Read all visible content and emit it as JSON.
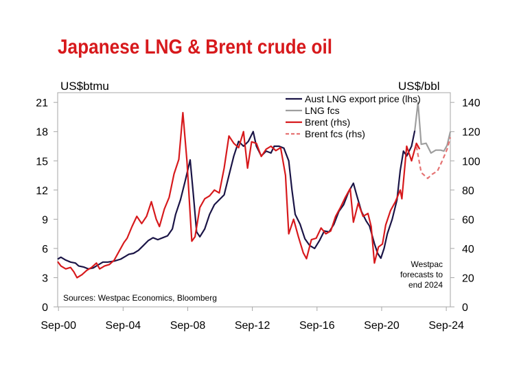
{
  "chart_data": {
    "type": "line",
    "title": "Japanese LNG & Brent crude oil",
    "y_left_label": "US$btmu",
    "y_right_label": "US$/bbl",
    "y_left_range": [
      0,
      22
    ],
    "y_right_range": [
      0,
      146.67
    ],
    "y_left_ticks": [
      "0",
      "3",
      "6",
      "9",
      "12",
      "15",
      "18",
      "21"
    ],
    "y_right_ticks": [
      "0",
      "20",
      "40",
      "60",
      "80",
      "100",
      "120",
      "140"
    ],
    "x_range": [
      2000.7,
      2025.0
    ],
    "x_ticks": [
      {
        "x": 2000.75,
        "label": "Sep-00"
      },
      {
        "x": 2004.75,
        "label": "Sep-04"
      },
      {
        "x": 2008.75,
        "label": "Sep-08"
      },
      {
        "x": 2012.75,
        "label": "Sep-12"
      },
      {
        "x": 2016.75,
        "label": "Sep-16"
      },
      {
        "x": 2020.75,
        "label": "Sep-20"
      },
      {
        "x": 2024.75,
        "label": "Sep-24"
      }
    ],
    "legend_position": "top-right",
    "source_note": "Sources: Westpac Economics,  Bloomberg",
    "forecast_note": [
      "Westpac",
      "forecasts to",
      "end 2024"
    ],
    "series": [
      {
        "name": "Aust LNG export price (lhs)",
        "axis": "left",
        "color": "#1a1446",
        "style": "solid",
        "points": [
          [
            2000.7,
            4.9
          ],
          [
            2000.9,
            5.1
          ],
          [
            2001.2,
            4.8
          ],
          [
            2001.5,
            4.6
          ],
          [
            2001.8,
            4.5
          ],
          [
            2002.0,
            4.2
          ],
          [
            2002.3,
            4.1
          ],
          [
            2002.6,
            3.9
          ],
          [
            2002.9,
            4.0
          ],
          [
            2003.2,
            4.3
          ],
          [
            2003.5,
            4.6
          ],
          [
            2003.8,
            4.6
          ],
          [
            2004.2,
            4.7
          ],
          [
            2004.6,
            4.9
          ],
          [
            2004.9,
            5.2
          ],
          [
            2005.1,
            5.4
          ],
          [
            2005.4,
            5.5
          ],
          [
            2005.7,
            5.8
          ],
          [
            2006.0,
            6.3
          ],
          [
            2006.3,
            6.8
          ],
          [
            2006.6,
            7.1
          ],
          [
            2006.9,
            6.9
          ],
          [
            2007.2,
            7.1
          ],
          [
            2007.5,
            7.3
          ],
          [
            2007.8,
            8.0
          ],
          [
            2008.0,
            9.5
          ],
          [
            2008.3,
            11.0
          ],
          [
            2008.6,
            13.0
          ],
          [
            2008.9,
            15.1
          ],
          [
            2009.1,
            11.5
          ],
          [
            2009.3,
            7.7
          ],
          [
            2009.5,
            7.2
          ],
          [
            2009.8,
            8.0
          ],
          [
            2010.1,
            9.5
          ],
          [
            2010.4,
            10.5
          ],
          [
            2010.7,
            11.0
          ],
          [
            2011.0,
            11.5
          ],
          [
            2011.3,
            13.5
          ],
          [
            2011.6,
            15.5
          ],
          [
            2011.9,
            17.0
          ],
          [
            2012.2,
            16.5
          ],
          [
            2012.5,
            17.0
          ],
          [
            2012.8,
            18.0
          ],
          [
            2013.0,
            16.5
          ],
          [
            2013.3,
            15.5
          ],
          [
            2013.6,
            16.0
          ],
          [
            2013.9,
            15.8
          ],
          [
            2014.1,
            16.5
          ],
          [
            2014.4,
            16.5
          ],
          [
            2014.7,
            16.3
          ],
          [
            2015.0,
            15.0
          ],
          [
            2015.2,
            12.0
          ],
          [
            2015.4,
            9.5
          ],
          [
            2015.7,
            8.5
          ],
          [
            2016.0,
            7.0
          ],
          [
            2016.3,
            6.3
          ],
          [
            2016.6,
            6.0
          ],
          [
            2016.9,
            6.8
          ],
          [
            2017.2,
            7.8
          ],
          [
            2017.5,
            7.7
          ],
          [
            2017.8,
            8.5
          ],
          [
            2018.1,
            9.8
          ],
          [
            2018.4,
            10.5
          ],
          [
            2018.7,
            11.8
          ],
          [
            2019.0,
            12.7
          ],
          [
            2019.2,
            11.5
          ],
          [
            2019.5,
            9.8
          ],
          [
            2019.8,
            8.8
          ],
          [
            2020.0,
            8.3
          ],
          [
            2020.3,
            6.5
          ],
          [
            2020.5,
            5.5
          ],
          [
            2020.7,
            5.0
          ],
          [
            2020.9,
            6.0
          ],
          [
            2021.1,
            7.5
          ],
          [
            2021.4,
            9.0
          ],
          [
            2021.7,
            11.0
          ],
          [
            2021.9,
            14.0
          ],
          [
            2022.1,
            16.0
          ],
          [
            2022.3,
            15.5
          ],
          [
            2022.6,
            16.5
          ],
          [
            2022.8,
            18.1
          ]
        ]
      },
      {
        "name": "LNG fcs",
        "axis": "left",
        "color": "#9e9e9e",
        "style": "solid",
        "points": [
          [
            2022.8,
            18.1
          ],
          [
            2023.0,
            21.0
          ],
          [
            2023.2,
            16.7
          ],
          [
            2023.5,
            16.8
          ],
          [
            2023.8,
            15.8
          ],
          [
            2024.1,
            16.1
          ],
          [
            2024.4,
            16.1
          ],
          [
            2024.6,
            16.0
          ],
          [
            2024.8,
            16.6
          ],
          [
            2025.0,
            18.0
          ]
        ]
      },
      {
        "name": "Brent (rhs)",
        "axis": "right",
        "color": "#d7191c",
        "style": "solid",
        "points": [
          [
            2000.7,
            31
          ],
          [
            2000.9,
            28
          ],
          [
            2001.2,
            26
          ],
          [
            2001.5,
            27
          ],
          [
            2001.7,
            24
          ],
          [
            2001.9,
            20
          ],
          [
            2002.2,
            22
          ],
          [
            2002.5,
            25
          ],
          [
            2002.8,
            27
          ],
          [
            2003.1,
            30
          ],
          [
            2003.3,
            26
          ],
          [
            2003.6,
            28
          ],
          [
            2003.9,
            29
          ],
          [
            2004.2,
            32
          ],
          [
            2004.5,
            38
          ],
          [
            2004.8,
            44
          ],
          [
            2005.0,
            47
          ],
          [
            2005.3,
            55
          ],
          [
            2005.6,
            62
          ],
          [
            2005.9,
            57
          ],
          [
            2006.2,
            62
          ],
          [
            2006.5,
            72
          ],
          [
            2006.8,
            60
          ],
          [
            2007.0,
            55
          ],
          [
            2007.3,
            67
          ],
          [
            2007.6,
            75
          ],
          [
            2007.9,
            91
          ],
          [
            2008.2,
            101
          ],
          [
            2008.45,
            133
          ],
          [
            2008.7,
            100
          ],
          [
            2009.0,
            45
          ],
          [
            2009.2,
            48
          ],
          [
            2009.5,
            68
          ],
          [
            2009.8,
            74
          ],
          [
            2010.1,
            76
          ],
          [
            2010.4,
            80
          ],
          [
            2010.7,
            78
          ],
          [
            2011.0,
            95
          ],
          [
            2011.3,
            117
          ],
          [
            2011.6,
            112
          ],
          [
            2011.9,
            109
          ],
          [
            2012.2,
            120
          ],
          [
            2012.45,
            95
          ],
          [
            2012.7,
            113
          ],
          [
            2013.0,
            112
          ],
          [
            2013.3,
            103
          ],
          [
            2013.6,
            108
          ],
          [
            2013.9,
            110
          ],
          [
            2014.2,
            107
          ],
          [
            2014.5,
            109
          ],
          [
            2014.8,
            90
          ],
          [
            2015.0,
            50
          ],
          [
            2015.3,
            60
          ],
          [
            2015.6,
            48
          ],
          [
            2015.9,
            37
          ],
          [
            2016.1,
            33
          ],
          [
            2016.4,
            46
          ],
          [
            2016.7,
            47
          ],
          [
            2017.0,
            54
          ],
          [
            2017.3,
            50
          ],
          [
            2017.6,
            52
          ],
          [
            2017.9,
            62
          ],
          [
            2018.2,
            68
          ],
          [
            2018.5,
            75
          ],
          [
            2018.8,
            81
          ],
          [
            2019.0,
            58
          ],
          [
            2019.3,
            71
          ],
          [
            2019.6,
            62
          ],
          [
            2019.9,
            64
          ],
          [
            2020.1,
            55
          ],
          [
            2020.3,
            30
          ],
          [
            2020.55,
            41
          ],
          [
            2020.8,
            43
          ],
          [
            2021.0,
            56
          ],
          [
            2021.3,
            66
          ],
          [
            2021.6,
            72
          ],
          [
            2021.9,
            80
          ],
          [
            2022.0,
            74
          ],
          [
            2022.3,
            110
          ],
          [
            2022.6,
            100
          ],
          [
            2022.9,
            112
          ],
          [
            2023.1,
            108
          ]
        ]
      },
      {
        "name": "Brent fcs (rhs)",
        "axis": "right",
        "color": "#e57373",
        "style": "dashed",
        "points": [
          [
            2022.9,
            110
          ],
          [
            2023.2,
            92
          ],
          [
            2023.6,
            88
          ],
          [
            2023.9,
            91
          ],
          [
            2024.2,
            93
          ],
          [
            2024.5,
            100
          ],
          [
            2024.8,
            108
          ],
          [
            2025.0,
            116
          ]
        ]
      }
    ]
  }
}
